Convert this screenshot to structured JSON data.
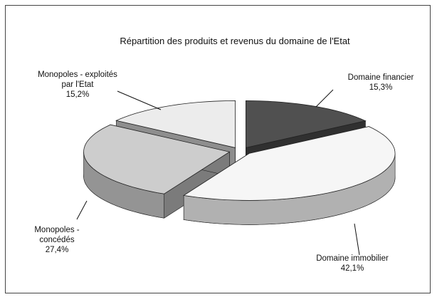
{
  "chart_data": {
    "type": "pie3d",
    "title": "Répartition des produits et revenus du domaine de l'Etat",
    "categories": [
      "Domaine financier",
      "Domaine immobilier",
      "Monopoles - concédés",
      "Monopoles - exploités par l'Etat"
    ],
    "values": [
      15.3,
      42.1,
      27.4,
      15.2
    ],
    "value_labels": [
      "15,3%",
      "42,1%",
      "27,4%",
      "15,2%"
    ],
    "colors": [
      "#505050",
      "#f6f6f6",
      "#cdcdcd",
      "#ececec"
    ]
  }
}
